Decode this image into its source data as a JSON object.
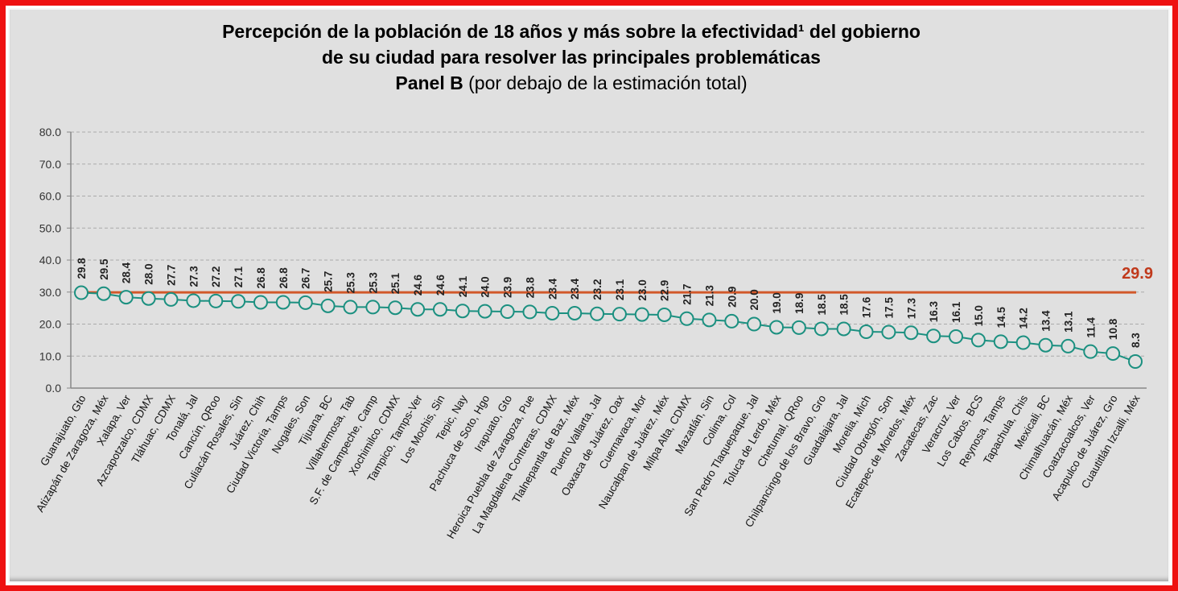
{
  "chart_data": {
    "type": "line",
    "title_line1": "Percepción de la población de 18 años y más sobre la efectividad¹ del gobierno",
    "title_line2": "de su ciudad para resolver las principales problemáticas",
    "subtitle_bold": "Panel B",
    "subtitle_rest": " (por debajo de la estimación total)",
    "ylim": [
      0,
      80
    ],
    "yticks": [
      "0.0",
      "10.0",
      "20.0",
      "30.0",
      "40.0",
      "50.0",
      "60.0",
      "70.0",
      "80.0"
    ],
    "grid": true,
    "reference_value": 29.9,
    "reference_label": "29.9",
    "colors": {
      "series": "#1b9080",
      "reference_line": "#d2582a",
      "reference_label": "#c0391b",
      "background": "#e0e0e0",
      "frame": "#ee1111"
    },
    "categories": [
      "Guanajuato, Gto",
      "Atizapán de Zaragoza, Méx",
      "Xalapa, Ver",
      "Azcapotzalco, CDMX",
      "Tláhuac, CDMX",
      "Tonalá, Jal",
      "Cancún, QRoo",
      "Culiacán Rosales, Sin",
      "Juárez, Chih",
      "Ciudad Victoria, Tamps",
      "Nogales, Son",
      "Tijuana, BC",
      "Villahermosa, Tab",
      "S.F. de Campeche, Camp",
      "Xochimilco, CDMX",
      "Tampico, Tamps-Ver",
      "Los Mochis, Sin",
      "Tepic, Nay",
      "Pachuca de Soto, Hgo",
      "Irapuato, Gto",
      "Heroica Puebla de Zaragoza, Pue",
      "La Magdalena Contreras, CDMX",
      "Tlalnepantla de Baz, Méx",
      "Puerto Vallarta, Jal",
      "Oaxaca de Juárez, Oax",
      "Cuernavaca, Mor",
      "Naucalpan de Juárez, Méx",
      "Milpa Alta, CDMX",
      "Mazatlán, Sin",
      "Colima, Col",
      "San Pedro Tlaquepaque, Jal",
      "Toluca de Lerdo, Méx",
      "Chetumal, QRoo",
      "Chilpancingo de los Bravo, Gro",
      "Guadalajara, Jal",
      "Morelia, Mich",
      "Ciudad Obregón, Son",
      "Ecatepec de Morelos, Méx",
      "Zacatecas, Zac",
      "Veracruz, Ver",
      "Los Cabos, BCS",
      "Reynosa, Tamps",
      "Tapachula, Chis",
      "Mexicali, BC",
      "Chimalhuacán, Méx",
      "Coatzacoalcos, Ver",
      "Acapulco de Juárez, Gro",
      "Cuautitlán Izcalli, Méx"
    ],
    "values": [
      29.8,
      29.5,
      28.4,
      28.0,
      27.7,
      27.3,
      27.2,
      27.1,
      26.8,
      26.8,
      26.7,
      25.7,
      25.3,
      25.3,
      25.1,
      24.6,
      24.6,
      24.1,
      24.0,
      23.9,
      23.8,
      23.4,
      23.4,
      23.2,
      23.1,
      23.0,
      22.9,
      21.7,
      21.3,
      20.9,
      20.0,
      19.0,
      18.9,
      18.5,
      18.5,
      17.6,
      17.5,
      17.3,
      16.3,
      16.1,
      15.0,
      14.5,
      14.2,
      13.4,
      13.1,
      11.4,
      10.8,
      8.3
    ]
  }
}
